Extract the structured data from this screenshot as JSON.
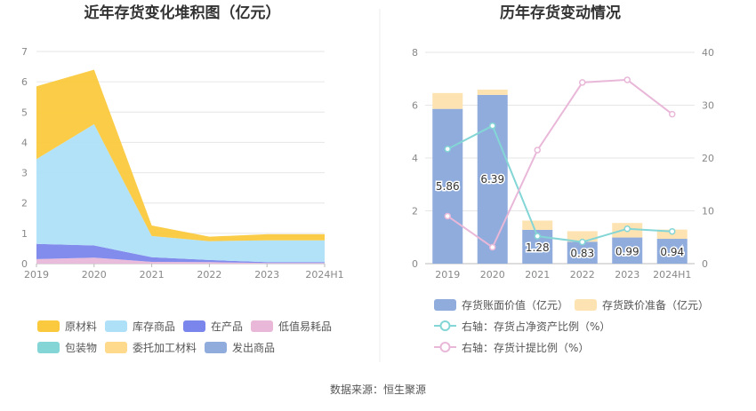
{
  "source_text": "数据来源：恒生聚源",
  "chart_data": [
    {
      "type": "area",
      "title": "近年存货变化堆积图（亿元）",
      "categories": [
        "2019",
        "2020",
        "2021",
        "2022",
        "2023",
        "2024H1"
      ],
      "ylim": [
        0,
        7
      ],
      "yticks": [
        "0",
        "1",
        "2",
        "3",
        "4",
        "5",
        "6",
        "7"
      ],
      "grid": true,
      "legend_position": "bottom",
      "series": [
        {
          "name": "原材料",
          "color": "#fbc93d",
          "values": [
            2.4,
            1.8,
            0.35,
            0.15,
            0.2,
            0.2
          ]
        },
        {
          "name": "库存商品",
          "color": "#aee0f8",
          "values": [
            2.8,
            4.0,
            0.7,
            0.62,
            0.72,
            0.72
          ]
        },
        {
          "name": "在产品",
          "color": "#7b86ec",
          "values": [
            0.5,
            0.4,
            0.15,
            0.07,
            0.03,
            0.03
          ]
        },
        {
          "name": "低值易耗品",
          "color": "#e9b8d9",
          "values": [
            0.15,
            0.2,
            0.06,
            0.05,
            0.02,
            0.02
          ]
        },
        {
          "name": "包装物",
          "color": "#84d6d6",
          "values": [
            0,
            0,
            0,
            0,
            0,
            0
          ]
        },
        {
          "name": "委托加工材料",
          "color": "#ffd98c",
          "values": [
            0,
            0,
            0,
            0,
            0,
            0
          ]
        },
        {
          "name": "发出商品",
          "color": "#8facdc",
          "values": [
            0,
            0,
            0,
            0,
            0,
            0
          ]
        }
      ]
    },
    {
      "type": "bar",
      "title": "历年存货变动情况",
      "categories": [
        "2019",
        "2020",
        "2021",
        "2022",
        "2023",
        "2024H1"
      ],
      "ylim_left": [
        0,
        8
      ],
      "yticks_left": [
        "0",
        "2",
        "4",
        "6",
        "8"
      ],
      "ylim_right": [
        0,
        40
      ],
      "yticks_right": [
        "0",
        "10",
        "20",
        "30",
        "40"
      ],
      "grid": true,
      "legend_position": "bottom",
      "bar_series": [
        {
          "name": "存货账面价值（亿元）",
          "color": "#8facdc",
          "values": [
            5.86,
            6.39,
            1.28,
            0.83,
            0.99,
            0.94
          ],
          "labels": [
            "5.86",
            "6.39",
            "1.28",
            "0.83",
            "0.99",
            "0.94"
          ]
        },
        {
          "name": "存货跌价准备（亿元）",
          "color": "#fde3b2",
          "values": [
            0.6,
            0.2,
            0.35,
            0.4,
            0.55,
            0.35
          ]
        }
      ],
      "line_series": [
        {
          "name": "右轴：存货占净资产比例（%）",
          "color": "#84d6d6",
          "values": [
            21.7,
            26.1,
            5.2,
            4.1,
            6.6,
            6.1
          ]
        },
        {
          "name": "右轴：存货计提比例（%）",
          "color": "#e9b8d9",
          "values": [
            9.0,
            3.1,
            21.5,
            34.3,
            34.8,
            28.3
          ]
        }
      ]
    }
  ]
}
